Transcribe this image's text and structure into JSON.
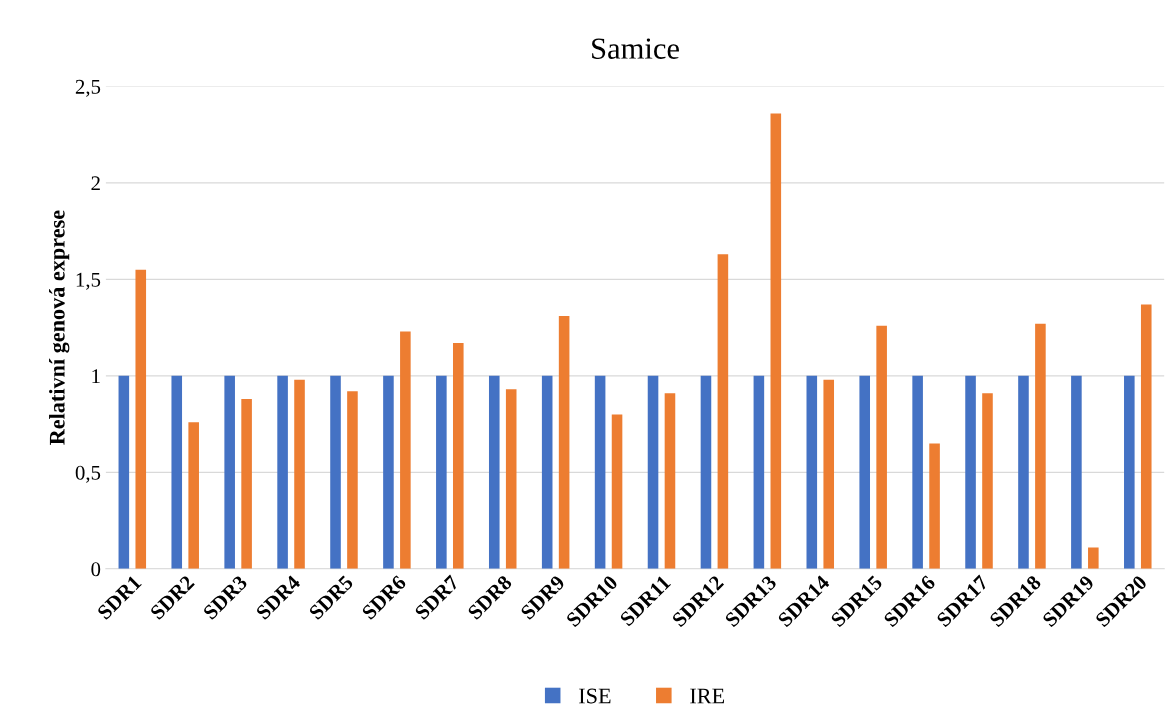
{
  "chart_data": {
    "type": "bar",
    "title": "Samice",
    "ylabel": "Relativní genová exprese",
    "categories": [
      "SDR1",
      "SDR2",
      "SDR3",
      "SDR4",
      "SDR5",
      "SDR6",
      "SDR7",
      "SDR8",
      "SDR9",
      "SDR10",
      "SDR11",
      "SDR12",
      "SDR13",
      "SDR14",
      "SDR15",
      "SDR16",
      "SDR17",
      "SDR18",
      "SDR19",
      "SDR20"
    ],
    "series": [
      {
        "name": "ISE",
        "color": "#4472c4",
        "values": [
          1,
          1,
          1,
          1,
          1,
          1,
          1,
          1,
          1,
          1,
          1,
          1,
          1,
          1,
          1,
          1,
          1,
          1,
          1,
          1
        ]
      },
      {
        "name": "IRE",
        "color": "#ed7d31",
        "values": [
          1.55,
          0.76,
          0.88,
          0.98,
          0.92,
          1.23,
          1.17,
          0.93,
          1.31,
          0.8,
          0.91,
          1.63,
          2.36,
          0.98,
          1.26,
          0.65,
          0.91,
          1.27,
          0.11,
          1.37
        ]
      }
    ],
    "ylim": [
      0,
      2.5
    ],
    "yticks": [
      0,
      {
        "value": 0.5,
        "label": "0,5"
      },
      1,
      {
        "value": 1.5,
        "label": "1,5"
      },
      2,
      {
        "value": 2.5,
        "label": "2,5"
      }
    ],
    "grid": "y",
    "legend": "bottom"
  }
}
